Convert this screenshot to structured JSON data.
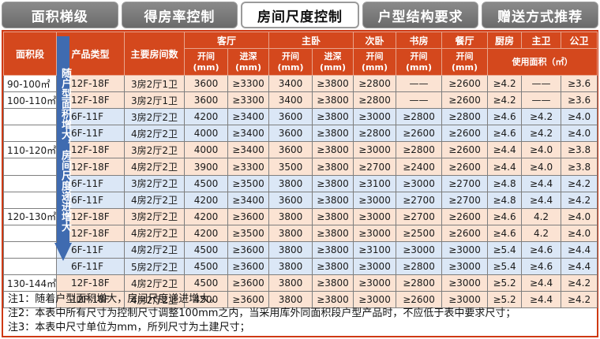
{
  "tabs": [
    {
      "label": "面积梯级",
      "active": false
    },
    {
      "label": "得房率控制",
      "active": false
    },
    {
      "label": "房间尺度控制",
      "active": true
    },
    {
      "label": "户型结构要求",
      "active": false
    },
    {
      "label": "赠送方式推荐",
      "active": false
    }
  ],
  "header": {
    "area": "面积段",
    "type": "产品类型",
    "rooms": "主要房间数",
    "living": "客厅",
    "master": "主卧",
    "second": "次卧",
    "study": "书房",
    "dining": "餐厅",
    "kitchen": "厨房",
    "main_bath": "主卫",
    "public_bath": "公卫",
    "width": "开间\n(mm)",
    "depth": "进深\n(mm)",
    "usable_area": "使用面积（㎡）"
  },
  "arrow_text": "随户型面积增大，房间尺度递进增大",
  "rows": [
    {
      "area": "90-100㎡",
      "type": "12F-18F",
      "rooms": "3房2厅1卫",
      "lw": "3600",
      "ld": "≥3300",
      "mw": "3400",
      "md": "≥3800",
      "sw": "≥2800",
      "st": "——",
      "dw": "≥2600",
      "k": "≥4.2",
      "mb": "——",
      "pb": "≥3.6",
      "tone": "peach"
    },
    {
      "area": "100-110㎡",
      "type": "12F-18F",
      "rooms": "3房2厅1卫",
      "lw": "3600",
      "ld": "≥3300",
      "mw": "3400",
      "md": "≥3800",
      "sw": "≥2800",
      "st": "——",
      "dw": "≥2600",
      "k": "≥4.2",
      "mb": "——",
      "pb": "≥3.6",
      "tone": "peach"
    },
    {
      "area": "",
      "type": "6F-11F",
      "rooms": "3房2厅2卫",
      "lw": "4200",
      "ld": "≥3400",
      "mw": "3600",
      "md": "≥3800",
      "sw": "≥3000",
      "st": "≥2800",
      "dw": "≥2800",
      "k": "≥4.6",
      "mb": "≥4.2",
      "pb": "≥4.0",
      "tone": "blue"
    },
    {
      "area": "",
      "type": "6F-11F",
      "rooms": "4房2厅2卫",
      "lw": "4000",
      "ld": "≥3400",
      "mw": "3600",
      "md": "≥3800",
      "sw": "≥2800",
      "st": "≥2600",
      "dw": "≥2600",
      "k": "≥4.6",
      "mb": "≥4.2",
      "pb": "≥4.0",
      "tone": "blue"
    },
    {
      "area": "110-120㎡",
      "type": "12F-18F",
      "rooms": "3房2厅2卫",
      "lw": "4000",
      "ld": "≥3400",
      "mw": "3600",
      "md": "≥3800",
      "sw": "≥3000",
      "st": "≥2800",
      "dw": "≥2600",
      "k": "≥4.4",
      "mb": "≥4.0",
      "pb": "≥3.8",
      "tone": "peach"
    },
    {
      "area": "",
      "type": "12F-18F",
      "rooms": "4房2厅2卫",
      "lw": "3900",
      "ld": "≥3300",
      "mw": "3500",
      "md": "≥3800",
      "sw": "≥2700",
      "st": "≥2400",
      "dw": "≥2600",
      "k": "≥4.4",
      "mb": "≥4.0",
      "pb": "≥3.8",
      "tone": "peach"
    },
    {
      "area": "",
      "type": "6F-11F",
      "rooms": "3房2厅2卫",
      "lw": "4500",
      "ld": "≥3500",
      "mw": "3800",
      "md": "≥3800",
      "sw": "≥3100",
      "st": "≥3000",
      "dw": "≥2700",
      "k": "≥4.8",
      "mb": "≥4.4",
      "pb": "≥4.2",
      "tone": "blue"
    },
    {
      "area": "",
      "type": "6F-11F",
      "rooms": "4房2厅2卫",
      "lw": "4200",
      "ld": "≥3400",
      "mw": "3600",
      "md": "≥3800",
      "sw": "≥3000",
      "st": "≥2700",
      "dw": "≥2700",
      "k": "≥4.8",
      "mb": "≥4.4",
      "pb": "≥4.2",
      "tone": "blue"
    },
    {
      "area": "120-130㎡",
      "type": "12F-18F",
      "rooms": "3房2厅2卫",
      "lw": "4200",
      "ld": "≥3600",
      "mw": "3800",
      "md": "≥3800",
      "sw": "≥3000",
      "st": "≥2700",
      "dw": "≥2600",
      "k": "≥4.6",
      "mb": "4.2",
      "pb": "≥4.0",
      "tone": "peach"
    },
    {
      "area": "",
      "type": "12F-18F",
      "rooms": "4房2厅2卫",
      "lw": "4200",
      "ld": "≥3500",
      "mw": "3800",
      "md": "≥3800",
      "sw": "≥3000",
      "st": "≥2500",
      "dw": "≥2600",
      "k": "≥4.6",
      "mb": "4.2",
      "pb": "≥4.0",
      "tone": "peach"
    },
    {
      "area": "",
      "type": "6F-11F",
      "rooms": "4房2厅2卫",
      "lw": "4500",
      "ld": "≥3600",
      "mw": "3800",
      "md": "≥3800",
      "sw": "≥3100",
      "st": "≥3000",
      "dw": "≥3000",
      "k": "≥5.4",
      "mb": "≥4.6",
      "pb": "≥4.4",
      "tone": "blue"
    },
    {
      "area": "",
      "type": "6F-11F",
      "rooms": "5房2厅2卫",
      "lw": "4500",
      "ld": "≥3600",
      "mw": "3800",
      "md": "≥3800",
      "sw": "≥3000",
      "st": "≥2800",
      "dw": "≥3000",
      "k": "≥5.4",
      "mb": "≥4.6",
      "pb": "≥4.4",
      "tone": "blue"
    },
    {
      "area": "130-144㎡",
      "type": "12F-18F",
      "rooms": "4房2厅2卫",
      "lw": "4500",
      "ld": "≥3600",
      "mw": "3800",
      "md": "≥3800",
      "sw": "≥3000",
      "st": "≥2800",
      "dw": "≥3000",
      "k": "≥5.2",
      "mb": "≥4.4",
      "pb": "≥4.2",
      "tone": "peach"
    },
    {
      "area": "",
      "type": "12F-18F",
      "rooms": "4房2厅2卫",
      "lw": "4500",
      "ld": "≥3600",
      "mw": "3800",
      "md": "≥3800",
      "sw": "≥3000",
      "st": "≥2600",
      "dw": "≥3000",
      "k": "≥5.2",
      "mb": "≥4.4",
      "pb": "≥4.2",
      "tone": "peach"
    }
  ],
  "notes": [
    "注1：随着户型面积增大，房间尺度递进增大。",
    "注2：本表中所有尺寸为控制尺寸调整100mm之内，当采用库外同面积段户型产品时，不应低于表中要求尺寸；",
    "注3：本表中尺寸单位为mm，所列尺寸为土建尺寸；"
  ],
  "colors": {
    "header": "#d4481d",
    "peach": "#fbe3d3",
    "blue": "#dbe7f6",
    "arrow": "#3f6bb0",
    "tab": "#7a7a7a"
  }
}
